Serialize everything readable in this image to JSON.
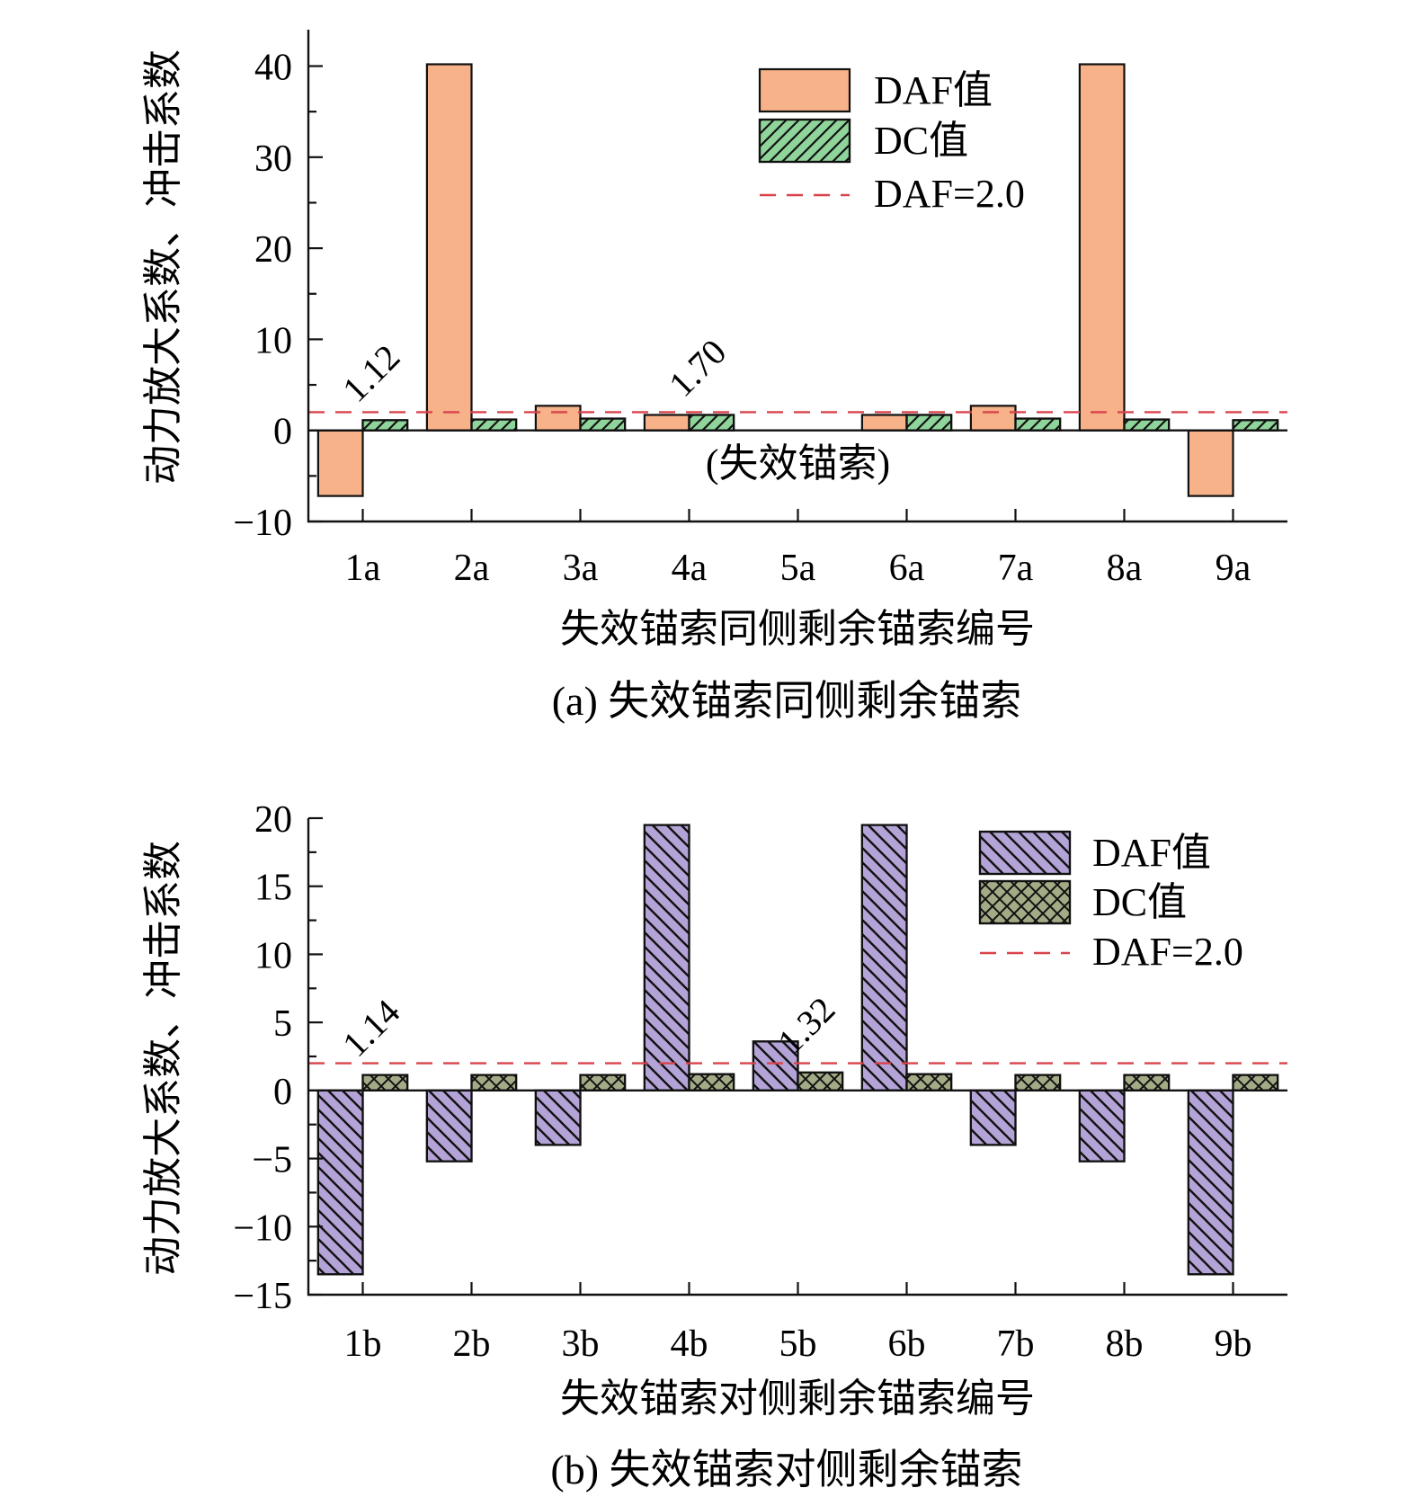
{
  "chart_data": [
    {
      "type": "bar",
      "caption": "(a) 失效锚索同侧剩余锚索",
      "xlabel": "失效锚索同侧剩余锚索编号",
      "ylabel": "动力放大系数、冲击系数",
      "ylim": [
        -10,
        44
      ],
      "yticks": [
        -10,
        0,
        10,
        20,
        30,
        40
      ],
      "categories": [
        "1a",
        "2a",
        "3a",
        "4a",
        "5a",
        "6a",
        "7a",
        "8a",
        "9a"
      ],
      "series": [
        {
          "name": "DAF值",
          "values": [
            -7.2,
            40.2,
            2.7,
            1.7,
            null,
            1.7,
            2.7,
            40.2,
            -7.2
          ],
          "color": "#f7b289",
          "pattern": "none"
        },
        {
          "name": "DC值",
          "values": [
            1.12,
            1.2,
            1.3,
            1.7,
            null,
            1.7,
            1.3,
            1.2,
            1.12
          ],
          "color": "#8fd49a",
          "pattern": "diag-right"
        }
      ],
      "reference_line": {
        "name": "DAF=2.0",
        "value": 2.0,
        "color": "#d9434c"
      },
      "annotations": [
        {
          "text": "1.12",
          "category": "1a"
        },
        {
          "text": "1.70",
          "category": "4a"
        },
        {
          "text": "(失效锚索)",
          "category": "5a"
        }
      ],
      "legend_position": "top-right"
    },
    {
      "type": "bar",
      "caption": "(b) 失效锚索对侧剩余锚索",
      "xlabel": "失效锚索对侧剩余锚索编号",
      "ylabel": "动力放大系数、冲击系数",
      "ylim": [
        -15,
        20
      ],
      "yticks": [
        -15,
        -10,
        -5,
        0,
        5,
        10,
        15,
        20
      ],
      "categories": [
        "1b",
        "2b",
        "3b",
        "4b",
        "5b",
        "6b",
        "7b",
        "8b",
        "9b"
      ],
      "series": [
        {
          "name": "DAF值",
          "values": [
            -13.5,
            -5.2,
            -4.0,
            19.5,
            3.6,
            19.5,
            -4.0,
            -5.2,
            -13.5
          ],
          "color": "#b3a3d6",
          "pattern": "diag-left"
        },
        {
          "name": "DC值",
          "values": [
            1.14,
            1.14,
            1.14,
            1.2,
            1.32,
            1.2,
            1.14,
            1.14,
            1.14
          ],
          "color": "#a2ab85",
          "pattern": "cross"
        }
      ],
      "reference_line": {
        "name": "DAF=2.0",
        "value": 2.0,
        "color": "#d9434c"
      },
      "annotations": [
        {
          "text": "1.14",
          "category": "1b"
        },
        {
          "text": "1.32",
          "category": "5b"
        }
      ],
      "legend_position": "top-right"
    }
  ]
}
